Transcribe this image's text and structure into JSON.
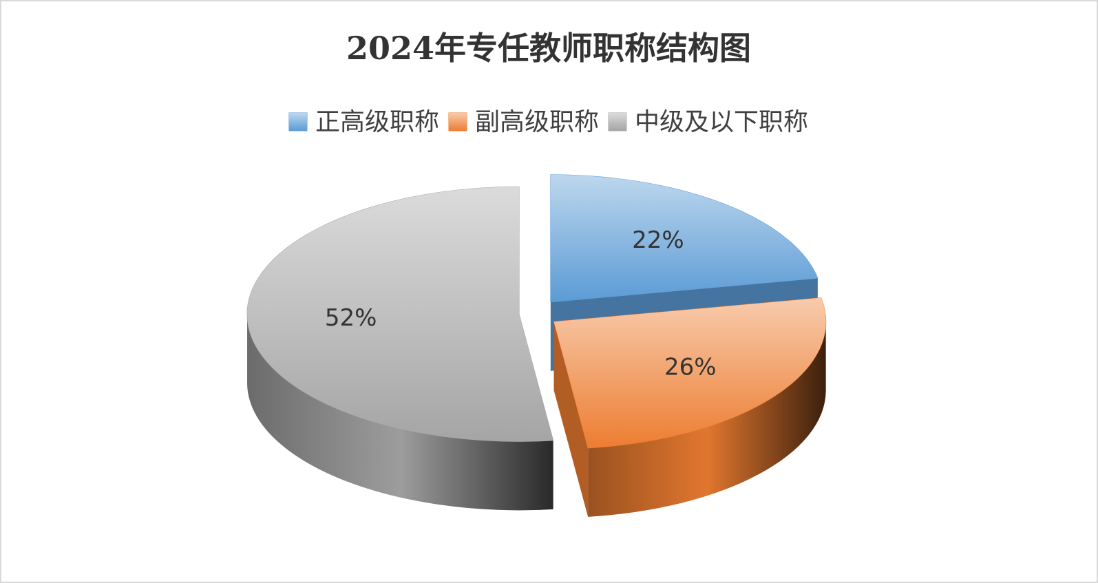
{
  "chart_data": {
    "type": "pie3d",
    "title": "2024年专任教师职称结构图",
    "categories": [
      "正高级职称",
      "副高级职称",
      "中级及以下职称"
    ],
    "values": [
      22,
      26,
      52
    ],
    "value_labels": [
      "22%",
      "26%",
      "52%"
    ],
    "colors": [
      "#5b9bd5",
      "#ed7d31",
      "#a5a5a5"
    ],
    "legend": "top"
  }
}
